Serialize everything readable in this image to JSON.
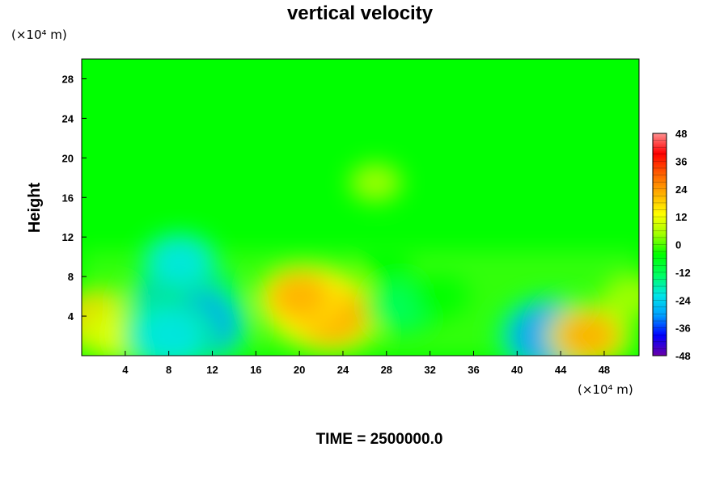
{
  "chart_data": {
    "type": "heatmap",
    "title": "vertical velocity",
    "ylabel": "Height",
    "x_unit": "(×10⁴ m)",
    "y_unit": "(×10⁴ m)",
    "footer": "TIME = 2500000.0",
    "xlim": [
      0,
      51.2
    ],
    "ylim": [
      0,
      30
    ],
    "x_ticks": [
      4,
      8,
      12,
      16,
      20,
      24,
      28,
      32,
      36,
      40,
      44,
      48
    ],
    "y_ticks": [
      4,
      8,
      12,
      16,
      20,
      24,
      28
    ],
    "colorbar": {
      "min": -48,
      "max": 48,
      "ticks": [
        48,
        36,
        24,
        12,
        0,
        -12,
        -24,
        -36,
        -48
      ],
      "colormap": [
        "#6a00a8",
        "#0000ff",
        "#00a0ff",
        "#00e6e6",
        "#00ff60",
        "#00ff00",
        "#a0ff00",
        "#ffff00",
        "#ffb000",
        "#ff6000",
        "#ff0000",
        "#ff9090"
      ]
    },
    "features": [
      {
        "x": 1.5,
        "y": 3.5,
        "value": 18
      },
      {
        "x": 3.0,
        "y": 2.5,
        "value": 16
      },
      {
        "x": 4.5,
        "y": 2.0,
        "value": 14
      },
      {
        "x": 9.5,
        "y": 5.0,
        "value": -34
      },
      {
        "x": 10.5,
        "y": 3.0,
        "value": -30
      },
      {
        "x": 8.0,
        "y": 2.0,
        "value": -24
      },
      {
        "x": 9.0,
        "y": 9.5,
        "value": -18
      },
      {
        "x": 21.5,
        "y": 5.0,
        "value": 27
      },
      {
        "x": 23.0,
        "y": 4.0,
        "value": 24
      },
      {
        "x": 20.0,
        "y": 6.0,
        "value": 18
      },
      {
        "x": 27.0,
        "y": 17.5,
        "value": 6
      },
      {
        "x": 29.5,
        "y": 5.0,
        "value": -16
      },
      {
        "x": 33.0,
        "y": 6.0,
        "value": -8
      },
      {
        "x": 43.0,
        "y": 2.0,
        "value": -30
      },
      {
        "x": 46.5,
        "y": 2.0,
        "value": 18
      },
      {
        "x": 50.5,
        "y": 6.0,
        "value": 8
      },
      {
        "x": 28.0,
        "y": 9.5,
        "value": -6
      }
    ]
  }
}
